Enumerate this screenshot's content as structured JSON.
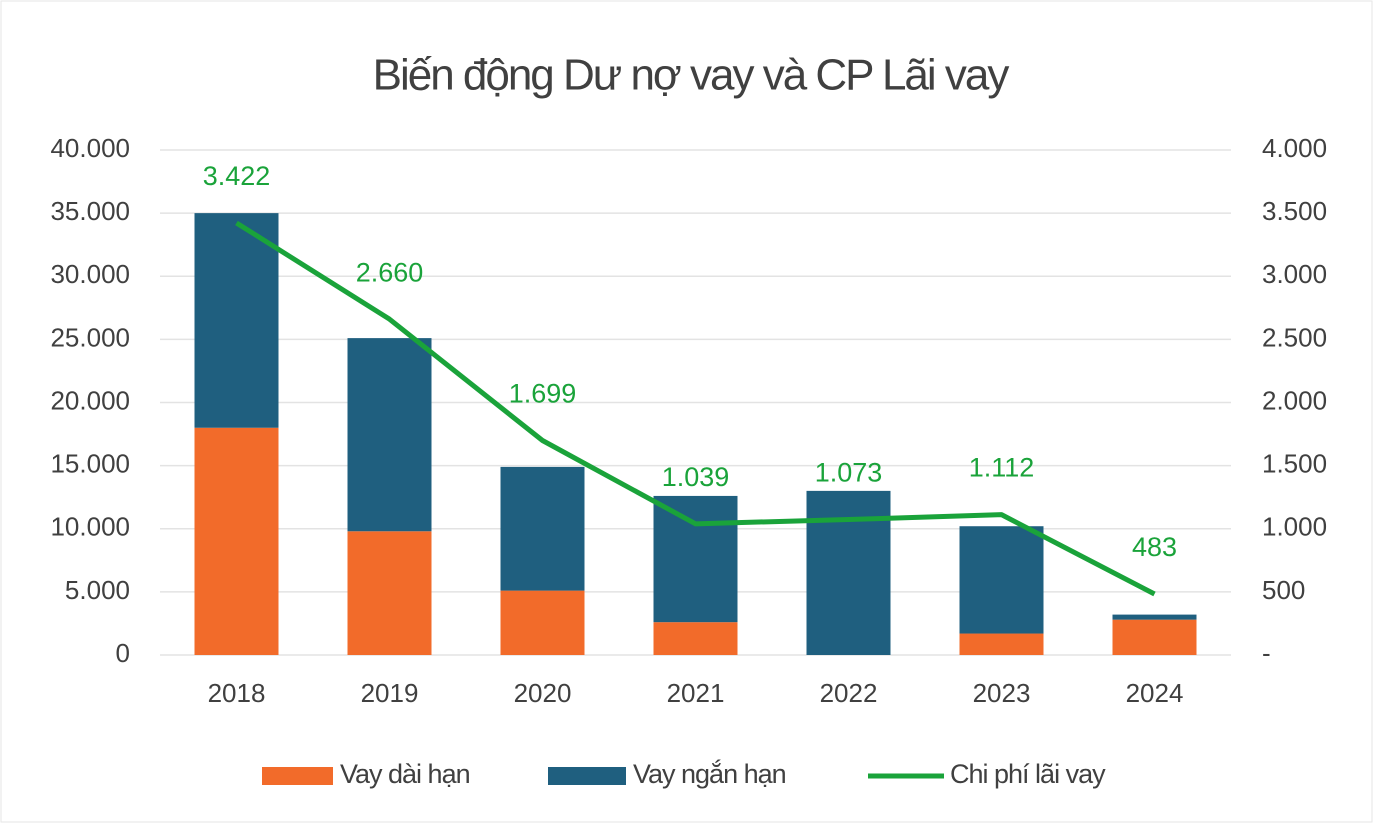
{
  "chart_data": {
    "type": "bar",
    "title": "Biến động Dư nợ vay và CP Lãi vay",
    "categories": [
      "2018",
      "2019",
      "2020",
      "2021",
      "2022",
      "2023",
      "2024"
    ],
    "stacked": true,
    "series": [
      {
        "name": "Vay dài hạn",
        "color": "#f26b2a",
        "type": "bar",
        "values": [
          18000,
          9800,
          5100,
          2600,
          0,
          1700,
          2800
        ]
      },
      {
        "name": "Vay ngắn hạn",
        "color": "#1f5f7f",
        "type": "bar",
        "values": [
          17000,
          15300,
          9800,
          10000,
          13000,
          8500,
          400
        ]
      },
      {
        "name": "Chi phí lãi vay",
        "color": "#1aa33a",
        "type": "line",
        "axis": "y2",
        "values": [
          3422,
          2660,
          1699,
          1039,
          1073,
          1112,
          483
        ],
        "value_labels": [
          "3.422",
          "2.660",
          "1.699",
          "1.039",
          "1.073",
          "1.112",
          "483"
        ]
      }
    ],
    "ylim": [
      0,
      40000
    ],
    "yticks": [
      0,
      {
        "value": 5000,
        "label": "5.000"
      },
      {
        "value": 10000,
        "label": "10.000"
      },
      {
        "value": 15000,
        "label": "15.000"
      },
      {
        "value": 20000,
        "label": "20.000"
      },
      {
        "value": 25000,
        "label": "25.000"
      },
      {
        "value": 30000,
        "label": "30.000"
      },
      {
        "value": 35000,
        "label": "35.000"
      },
      {
        "value": 40000,
        "label": "40.000"
      }
    ],
    "y2lim": [
      0,
      4000
    ],
    "y2ticks": [
      {
        "value": 0,
        "label": "-"
      },
      500,
      {
        "value": 1000,
        "label": "1.000"
      },
      {
        "value": 1500,
        "label": "1.500"
      },
      {
        "value": 2000,
        "label": "2.000"
      },
      {
        "value": 2500,
        "label": "2.500"
      },
      {
        "value": 3000,
        "label": "3.000"
      },
      {
        "value": 3500,
        "label": "3.500"
      },
      {
        "value": 4000,
        "label": "4.000"
      }
    ],
    "grid": true,
    "legend": "bottom"
  }
}
